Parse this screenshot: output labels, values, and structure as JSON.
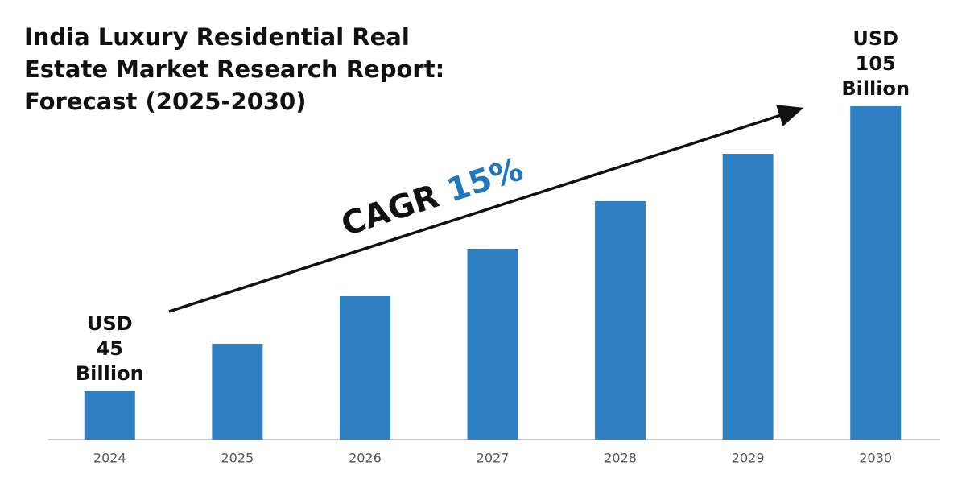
{
  "chart_data": {
    "type": "bar",
    "title": "India Luxury Residential Real Estate Market Research Report: Forecast (2025-2030)",
    "categories": [
      "2024",
      "2025",
      "2026",
      "2027",
      "2028",
      "2029",
      "2030"
    ],
    "values": [
      45,
      55,
      65,
      75,
      85,
      95,
      105
    ],
    "value_labels": [
      "USD 45 Billion",
      null,
      null,
      null,
      null,
      null,
      "USD 105 Billion"
    ],
    "color": "#2e80c3",
    "annotations": [
      "CAGR",
      "15%"
    ]
  }
}
